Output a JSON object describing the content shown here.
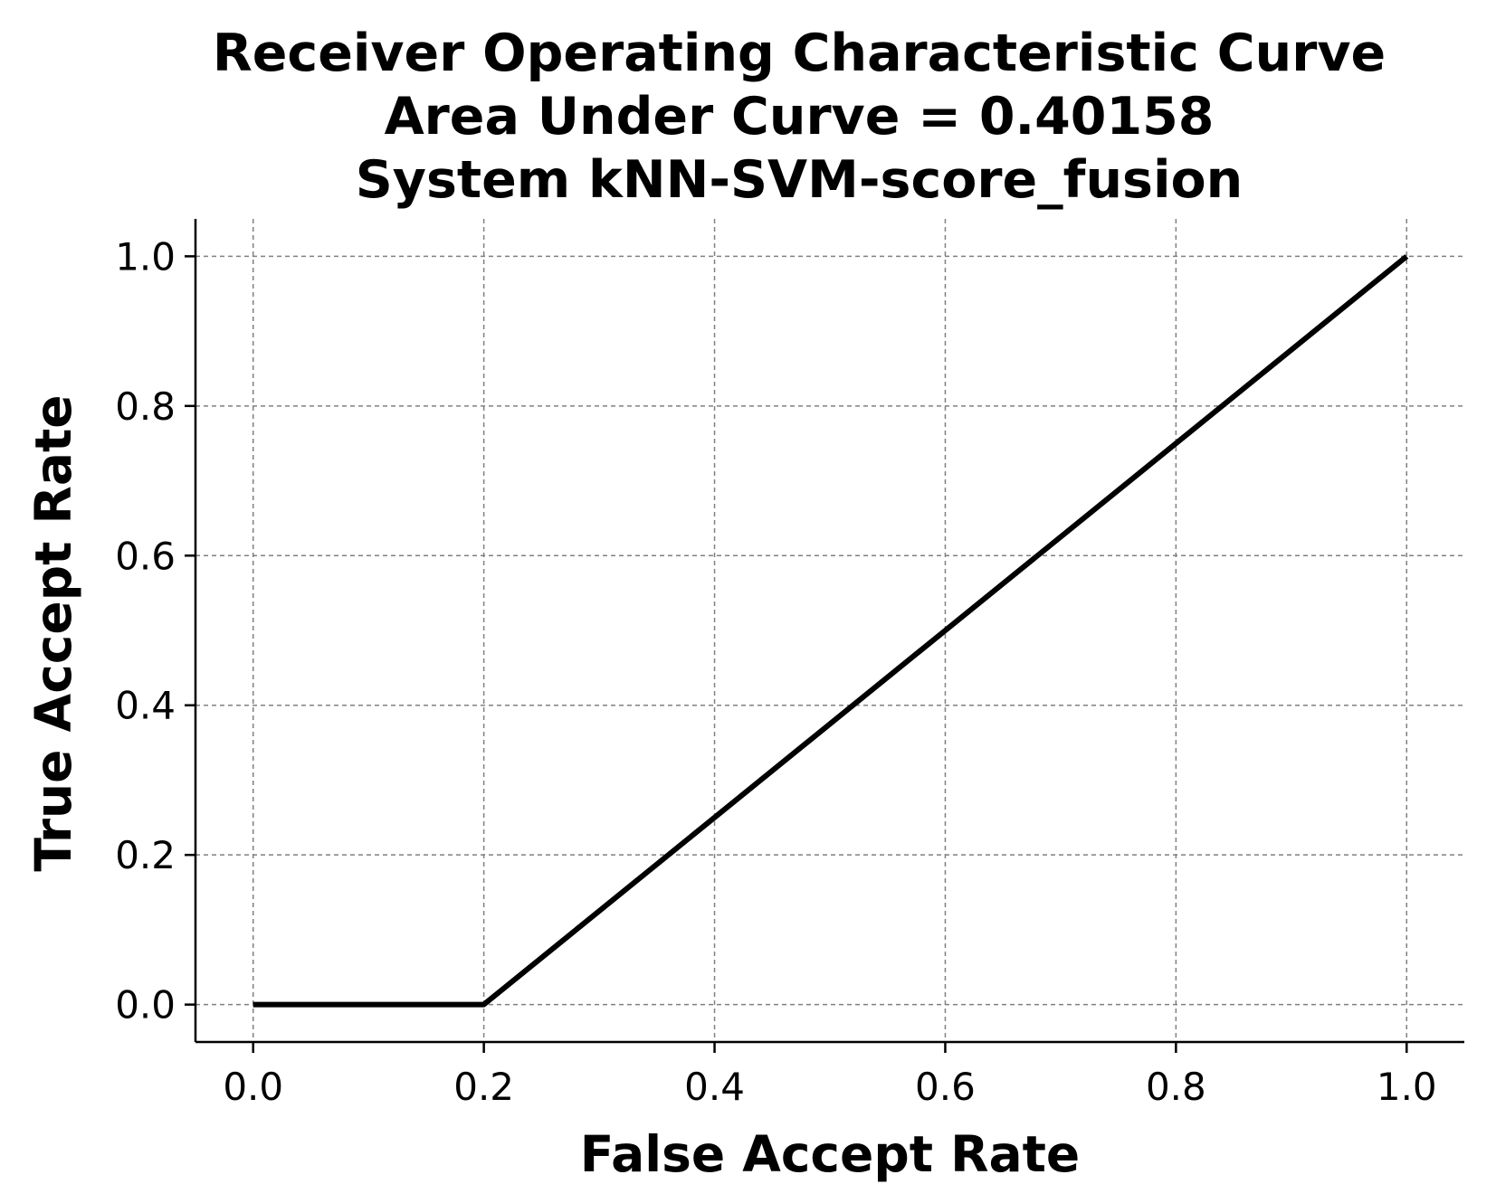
{
  "chart_data": {
    "type": "line",
    "title_lines": [
      "Receiver Operating Characteristic Curve",
      "Area Under Curve = 0.40158",
      "System kNN-SVM-score_fusion"
    ],
    "xlabel": "False Accept Rate",
    "ylabel": "True Accept Rate",
    "xlim": [
      -0.05,
      1.05
    ],
    "ylim": [
      -0.05,
      1.05
    ],
    "x_ticks": [
      0.0,
      0.2,
      0.4,
      0.6,
      0.8,
      1.0
    ],
    "x_tick_labels": [
      "0.0",
      "0.2",
      "0.4",
      "0.6",
      "0.8",
      "1.0"
    ],
    "y_ticks": [
      0.0,
      0.2,
      0.4,
      0.6,
      0.8,
      1.0
    ],
    "y_tick_labels": [
      "0.0",
      "0.2",
      "0.4",
      "0.6",
      "0.8",
      "1.0"
    ],
    "grid": true,
    "series": [
      {
        "color": "#000000",
        "x": [
          0.0,
          0.2,
          1.0
        ],
        "y": [
          0.0,
          0.0,
          1.0
        ]
      }
    ]
  }
}
